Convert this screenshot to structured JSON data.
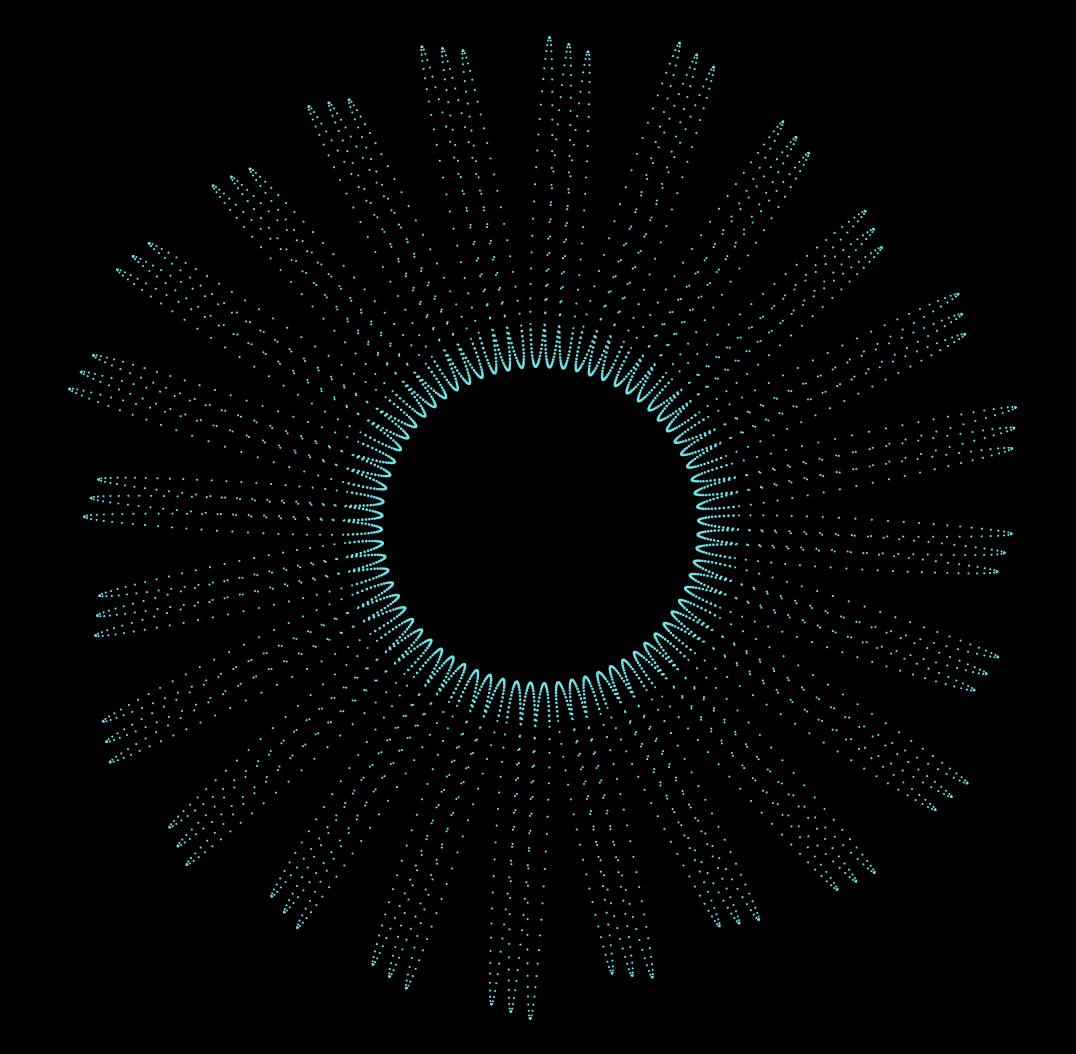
{
  "canvas": {
    "background_color": "#000000",
    "dot_color": "#6fe3ea"
  },
  "figure": {
    "petal_count": 24,
    "loops_per_petal": 3,
    "style": "dotted"
  }
}
